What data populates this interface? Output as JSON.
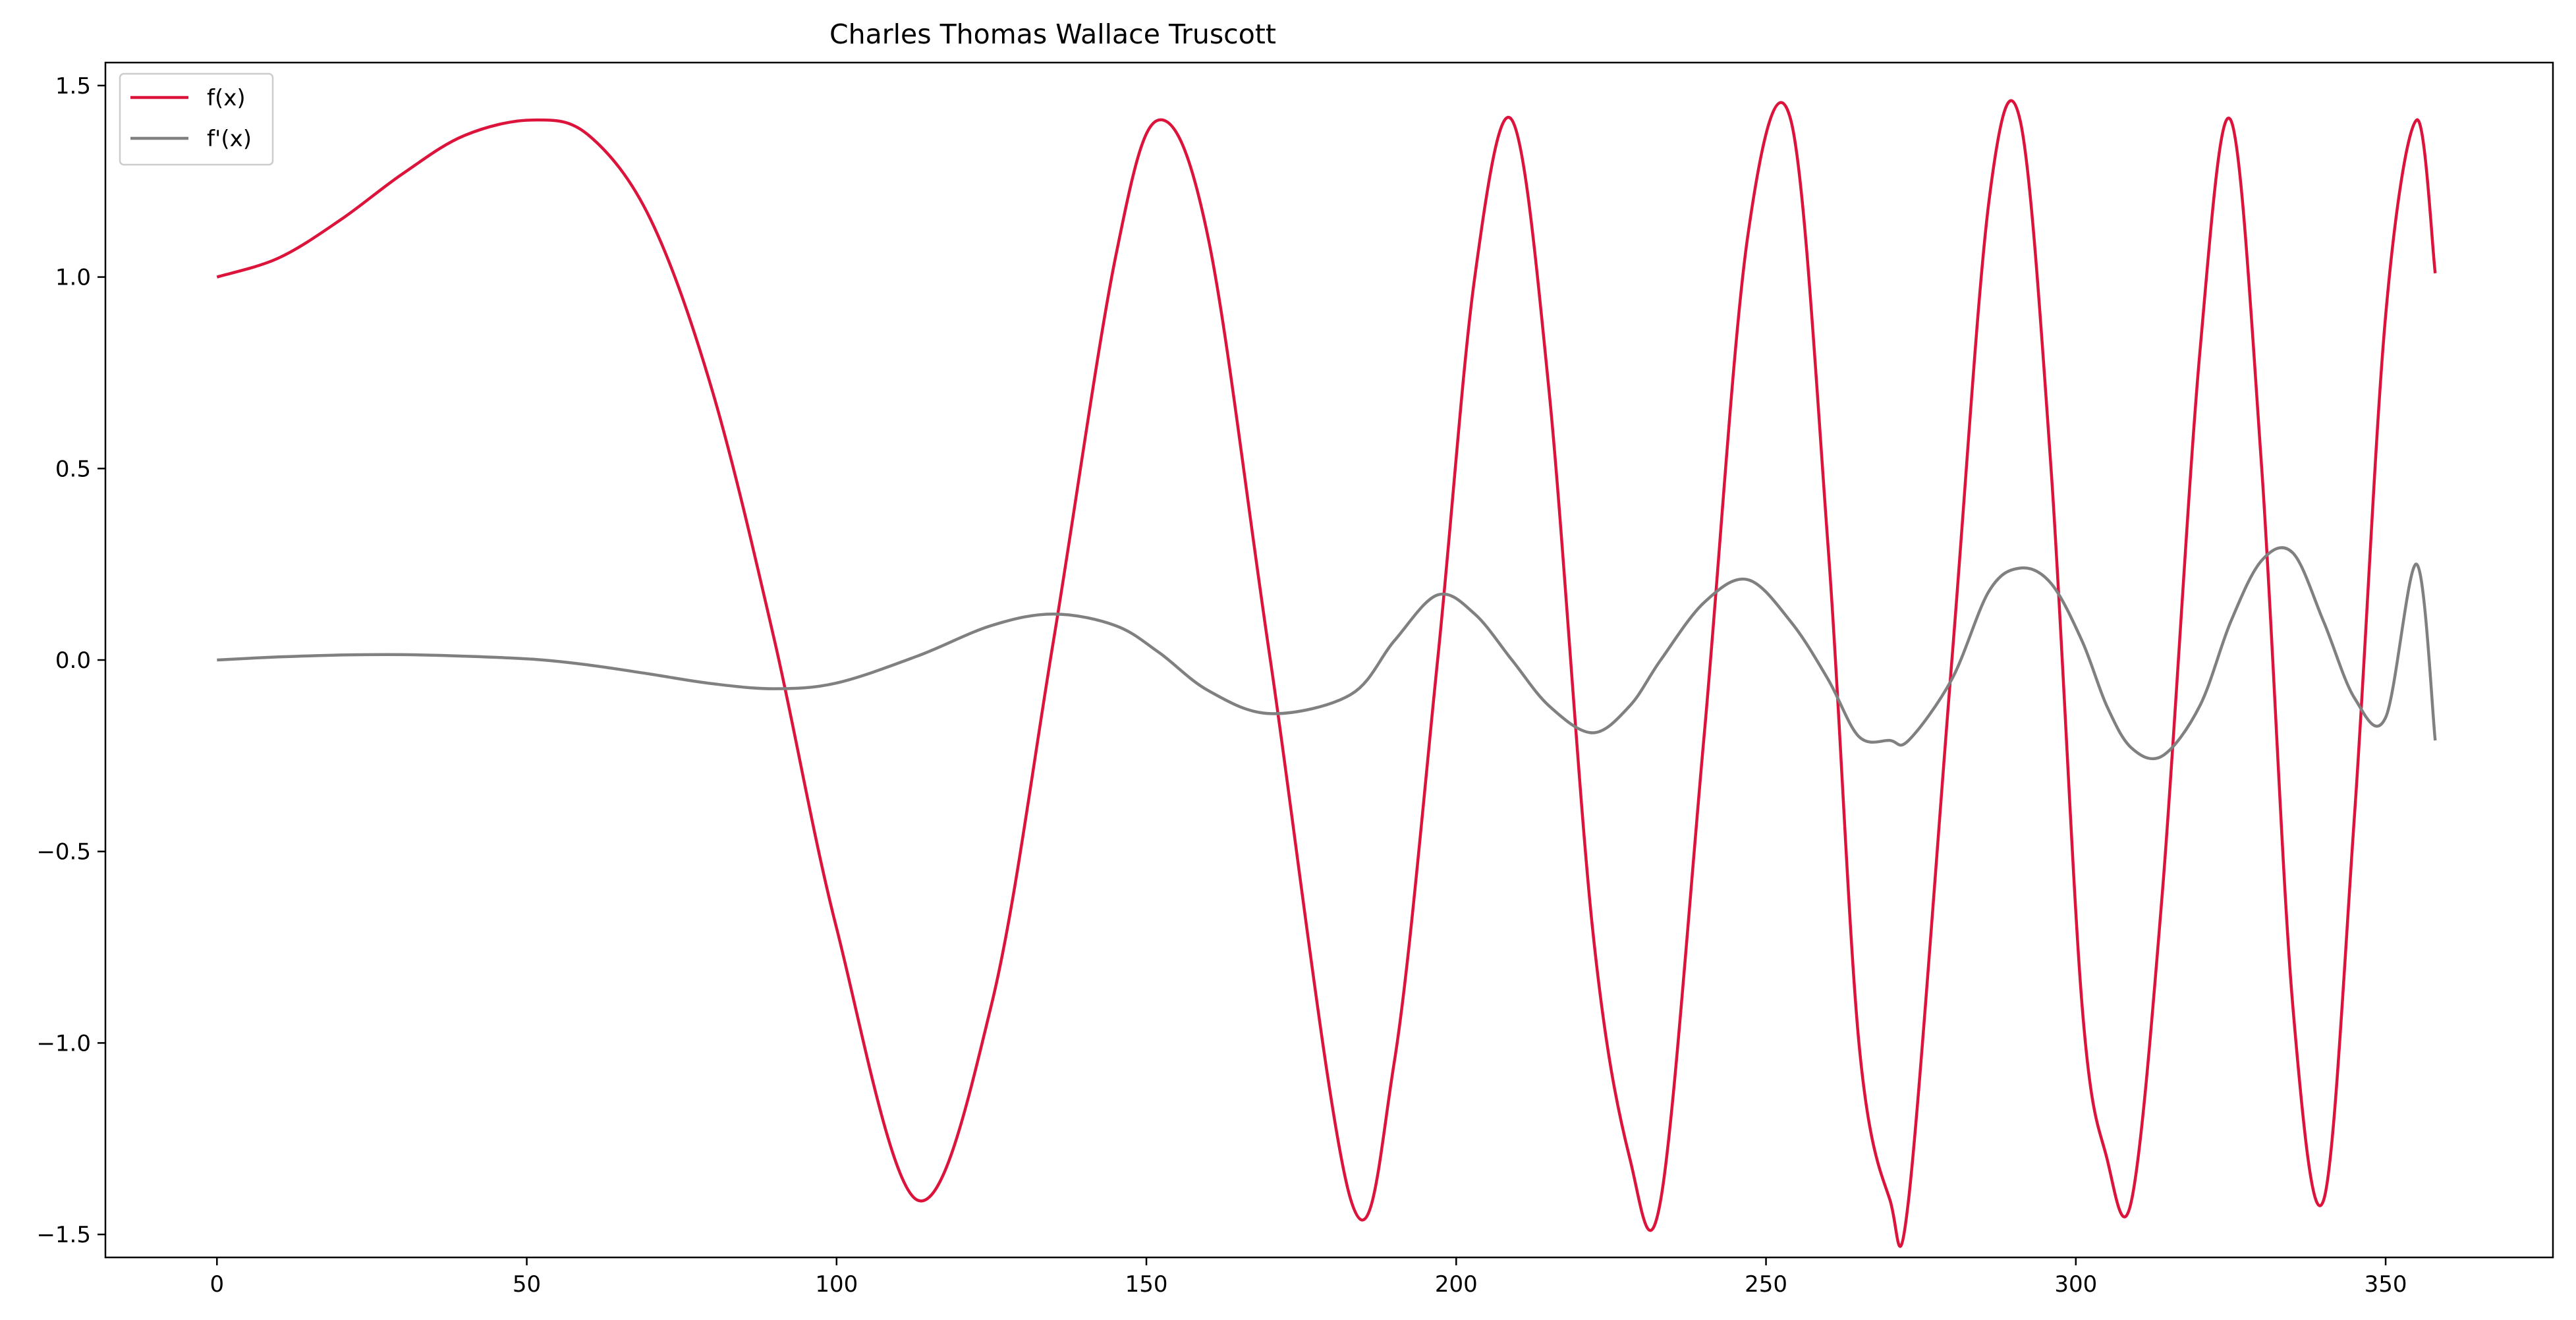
{
  "chart_data": {
    "type": "line",
    "title": "Charles Thomas Wallace Truscott",
    "xlabel": "",
    "ylabel": "",
    "xlim": [
      -18,
      377
    ],
    "ylim": [
      -1.56,
      1.56
    ],
    "x_ticks": [
      0,
      50,
      100,
      150,
      200,
      250,
      300,
      350
    ],
    "x_tick_labels": [
      "0",
      "50",
      "100",
      "150",
      "200",
      "250",
      "300",
      "350"
    ],
    "y_ticks": [
      1.5,
      1.0,
      0.5,
      0.0,
      -0.5,
      -1.0,
      -1.5
    ],
    "y_tick_labels": [
      "1.5",
      "1.0",
      "0.5",
      "0.0",
      "−0.5",
      "−1.0",
      "−1.5"
    ],
    "grid": false,
    "legend_position": "top-left",
    "x": [
      0,
      10,
      20,
      30,
      40,
      51,
      60,
      70,
      80,
      90,
      100,
      113,
      125,
      135,
      145,
      152,
      160,
      170,
      183,
      190,
      197,
      203,
      209,
      215,
      222,
      228,
      233,
      240,
      247,
      254,
      260,
      265,
      270,
      273,
      280,
      286,
      291,
      296,
      301,
      305,
      309,
      314,
      320,
      325,
      330,
      335,
      340,
      345,
      350,
      355,
      358
    ],
    "series": [
      {
        "name": "f(x)",
        "color": "#dc143c",
        "values": [
          1.0,
          1.05,
          1.15,
          1.27,
          1.37,
          1.41,
          1.37,
          1.15,
          0.7,
          0.05,
          -0.7,
          -1.41,
          -0.9,
          0.05,
          1.05,
          1.41,
          1.1,
          0.0,
          -1.41,
          -1.05,
          0.0,
          1.0,
          1.41,
          0.7,
          -0.7,
          -1.3,
          -1.41,
          -0.2,
          1.1,
          1.41,
          0.3,
          -1.0,
          -1.41,
          -1.41,
          0.0,
          1.2,
          1.41,
          0.5,
          -0.9,
          -1.3,
          -1.41,
          -0.6,
          0.8,
          1.41,
          0.5,
          -0.9,
          -1.41,
          -0.4,
          0.9,
          1.41,
          1.01
        ]
      },
      {
        "name": "f'(x)",
        "color": "#808080",
        "values": [
          0.0,
          0.008,
          0.013,
          0.014,
          0.01,
          0.002,
          -0.013,
          -0.037,
          -0.062,
          -0.075,
          -0.06,
          0.01,
          0.09,
          0.12,
          0.09,
          0.02,
          -0.08,
          -0.14,
          -0.09,
          0.05,
          0.17,
          0.12,
          0.0,
          -0.12,
          -0.19,
          -0.12,
          0.0,
          0.15,
          0.21,
          0.1,
          -0.05,
          -0.2,
          -0.21,
          -0.21,
          -0.05,
          0.18,
          0.24,
          0.2,
          0.05,
          -0.12,
          -0.23,
          -0.25,
          -0.12,
          0.1,
          0.26,
          0.28,
          0.1,
          -0.1,
          -0.15,
          0.25,
          -0.21
        ]
      }
    ]
  }
}
